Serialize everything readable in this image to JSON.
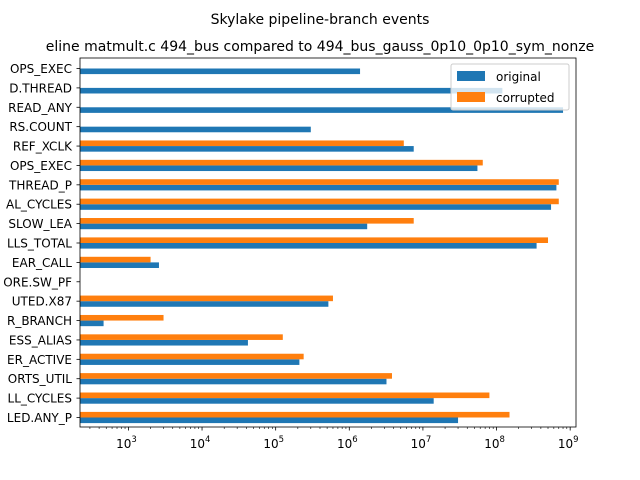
{
  "chart_data": {
    "type": "bar",
    "orientation": "horizontal",
    "title": "Skylake pipeline-branch events",
    "subtitle": "eline matmult.c 494_bus compared to 494_bus_gauss_0p10_0p10_sym_nonze",
    "xscale": "log",
    "xlim": [
      220,
      1200000000
    ],
    "xticks": [
      {
        "value": 1000,
        "base": "10",
        "exp": "3"
      },
      {
        "value": 10000,
        "base": "10",
        "exp": "4"
      },
      {
        "value": 100000,
        "base": "10",
        "exp": "5"
      },
      {
        "value": 1000000,
        "base": "10",
        "exp": "6"
      },
      {
        "value": 10000000,
        "base": "10",
        "exp": "7"
      },
      {
        "value": 100000000,
        "base": "10",
        "exp": "8"
      },
      {
        "value": 1000000000,
        "base": "10",
        "exp": "9"
      }
    ],
    "categories": [
      "OPS_EXEC",
      "D.THREAD",
      "READ_ANY",
      "RS.COUNT",
      "REF_XCLK",
      "OPS_EXEC",
      "THREAD_P",
      "AL_CYCLES",
      "SLOW_LEA",
      "LLS_TOTAL",
      "EAR_CALL",
      "ORE.SW_PF",
      "UTED.X87",
      "R_BRANCH",
      "ESS_ALIAS",
      "ER_ACTIVE",
      "ORTS_UTIL",
      "LL_CYCLES",
      "LED.ANY_P"
    ],
    "series": [
      {
        "name": "original",
        "color": "#1f77b4",
        "values": [
          1400000,
          120000000,
          800000000,
          300000,
          7500000,
          55000000,
          650000000,
          550000000,
          1750000,
          350000000,
          2600,
          null,
          520000,
          460,
          42000,
          210000,
          3200000,
          14000000,
          30000000
        ]
      },
      {
        "name": "corrupted",
        "color": "#ff7f0e",
        "values": [
          null,
          null,
          null,
          null,
          5500000,
          65000000,
          700000000,
          700000000,
          7500000,
          500000000,
          2000,
          null,
          600000,
          3000,
          125000,
          240000,
          3800000,
          80000000,
          150000000
        ]
      }
    ],
    "legend_position": "top-right",
    "grid": false
  }
}
